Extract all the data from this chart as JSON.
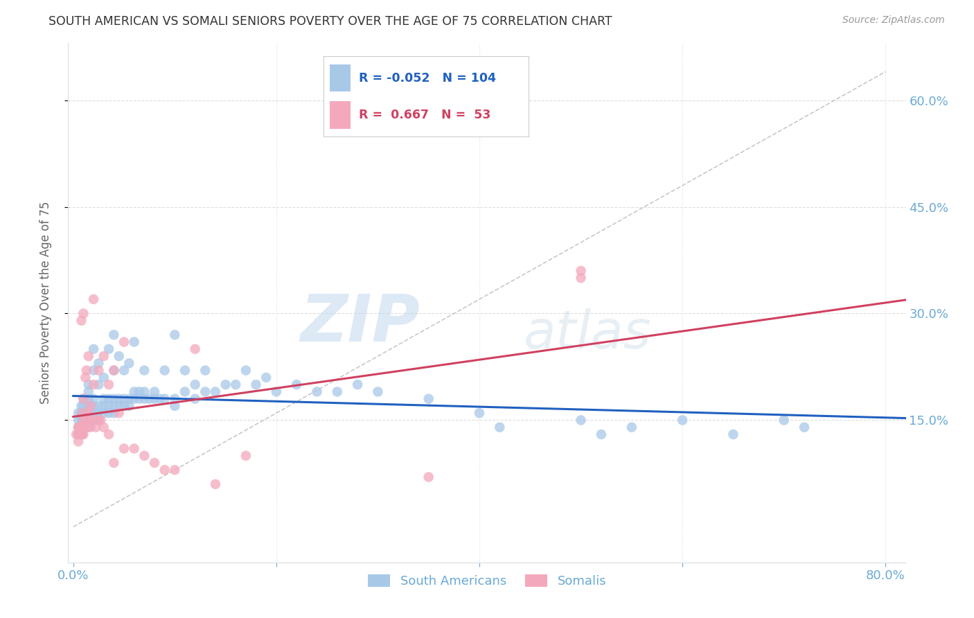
{
  "title": "SOUTH AMERICAN VS SOMALI SENIORS POVERTY OVER THE AGE OF 75 CORRELATION CHART",
  "source": "Source: ZipAtlas.com",
  "ylabel": "Seniors Poverty Over the Age of 75",
  "xlim": [
    -0.005,
    0.82
  ],
  "ylim": [
    -0.05,
    0.68
  ],
  "watermark_zip": "ZIP",
  "watermark_atlas": "atlas",
  "blue_R": "-0.052",
  "blue_N": "104",
  "pink_R": "0.667",
  "pink_N": "53",
  "blue_color": "#A8C8E8",
  "pink_color": "#F4A8BC",
  "blue_line_color": "#2060C0",
  "pink_line_color": "#D04060",
  "title_color": "#444444",
  "axis_color": "#6aaad4",
  "grid_color": "#DDDDDD",
  "south_american_x": [
    0.005,
    0.005,
    0.005,
    0.005,
    0.008,
    0.008,
    0.008,
    0.008,
    0.008,
    0.009,
    0.009,
    0.009,
    0.01,
    0.01,
    0.01,
    0.01,
    0.01,
    0.01,
    0.01,
    0.015,
    0.015,
    0.015,
    0.015,
    0.015,
    0.015,
    0.015,
    0.02,
    0.02,
    0.02,
    0.02,
    0.02,
    0.02,
    0.025,
    0.025,
    0.025,
    0.025,
    0.025,
    0.03,
    0.03,
    0.03,
    0.03,
    0.035,
    0.035,
    0.035,
    0.035,
    0.04,
    0.04,
    0.04,
    0.04,
    0.04,
    0.045,
    0.045,
    0.045,
    0.05,
    0.05,
    0.05,
    0.055,
    0.055,
    0.055,
    0.06,
    0.06,
    0.06,
    0.065,
    0.065,
    0.07,
    0.07,
    0.07,
    0.075,
    0.08,
    0.08,
    0.085,
    0.09,
    0.09,
    0.1,
    0.1,
    0.1,
    0.11,
    0.11,
    0.12,
    0.12,
    0.13,
    0.13,
    0.14,
    0.15,
    0.16,
    0.17,
    0.18,
    0.19,
    0.2,
    0.22,
    0.24,
    0.26,
    0.28,
    0.3,
    0.35,
    0.4,
    0.42,
    0.5,
    0.52,
    0.55,
    0.6,
    0.65,
    0.7,
    0.72
  ],
  "south_american_y": [
    0.13,
    0.14,
    0.15,
    0.16,
    0.13,
    0.14,
    0.15,
    0.16,
    0.17,
    0.14,
    0.15,
    0.16,
    0.14,
    0.14,
    0.15,
    0.15,
    0.16,
    0.17,
    0.18,
    0.14,
    0.15,
    0.16,
    0.17,
    0.18,
    0.19,
    0.2,
    0.15,
    0.16,
    0.17,
    0.18,
    0.22,
    0.25,
    0.15,
    0.16,
    0.17,
    0.2,
    0.23,
    0.16,
    0.17,
    0.18,
    0.21,
    0.16,
    0.17,
    0.18,
    0.25,
    0.16,
    0.17,
    0.18,
    0.22,
    0.27,
    0.17,
    0.18,
    0.24,
    0.17,
    0.18,
    0.22,
    0.17,
    0.18,
    0.23,
    0.18,
    0.19,
    0.26,
    0.18,
    0.19,
    0.18,
    0.19,
    0.22,
    0.18,
    0.18,
    0.19,
    0.18,
    0.18,
    0.22,
    0.17,
    0.18,
    0.27,
    0.19,
    0.22,
    0.18,
    0.2,
    0.19,
    0.22,
    0.19,
    0.2,
    0.2,
    0.22,
    0.2,
    0.21,
    0.19,
    0.2,
    0.19,
    0.19,
    0.2,
    0.19,
    0.18,
    0.16,
    0.14,
    0.15,
    0.13,
    0.14,
    0.15,
    0.13,
    0.15,
    0.14
  ],
  "somali_x": [
    0.003,
    0.005,
    0.005,
    0.005,
    0.006,
    0.007,
    0.007,
    0.008,
    0.008,
    0.009,
    0.009,
    0.009,
    0.01,
    0.01,
    0.01,
    0.01,
    0.01,
    0.012,
    0.012,
    0.013,
    0.013,
    0.015,
    0.015,
    0.015,
    0.017,
    0.017,
    0.02,
    0.02,
    0.02,
    0.022,
    0.025,
    0.025,
    0.027,
    0.03,
    0.03,
    0.035,
    0.035,
    0.04,
    0.04,
    0.045,
    0.05,
    0.05,
    0.06,
    0.07,
    0.08,
    0.09,
    0.1,
    0.12,
    0.14,
    0.17,
    0.35,
    0.5,
    0.5
  ],
  "somali_y": [
    0.13,
    0.12,
    0.13,
    0.14,
    0.14,
    0.13,
    0.14,
    0.14,
    0.29,
    0.13,
    0.14,
    0.16,
    0.13,
    0.14,
    0.15,
    0.18,
    0.3,
    0.14,
    0.21,
    0.15,
    0.22,
    0.15,
    0.16,
    0.24,
    0.14,
    0.17,
    0.15,
    0.2,
    0.32,
    0.14,
    0.15,
    0.22,
    0.15,
    0.14,
    0.24,
    0.13,
    0.2,
    0.09,
    0.22,
    0.16,
    0.11,
    0.26,
    0.11,
    0.1,
    0.09,
    0.08,
    0.08,
    0.25,
    0.06,
    0.1,
    0.07,
    0.35,
    0.36
  ]
}
